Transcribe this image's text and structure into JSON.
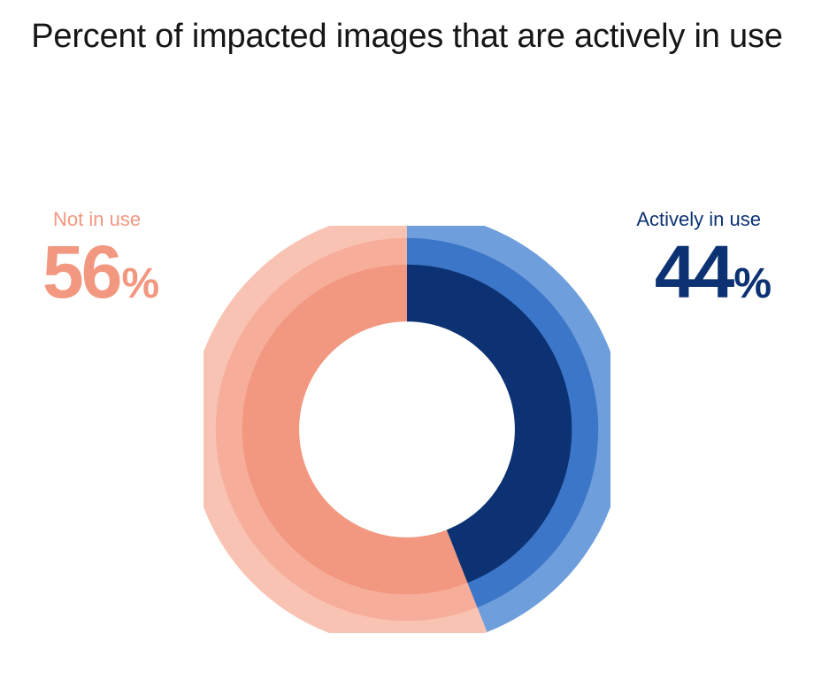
{
  "chart": {
    "type": "donut",
    "title": "Percent of impacted images that are actively in use",
    "title_fontsize": 38,
    "title_color": "#161616",
    "background_color": "#ffffff",
    "left": {
      "label": "Not in use",
      "value": 56,
      "unit": "%",
      "label_color": "#f29880"
    },
    "right": {
      "label": "Actively in use",
      "value": 44,
      "unit": "%",
      "label_color": "#0c3273"
    },
    "donut": {
      "outer_radius": 230,
      "inner_radius": 130,
      "rings": [
        {
          "radius_pct": 0.93,
          "stroke_pct": 0.14,
          "left_color": "#f9c3b4",
          "right_color": "#6e9edb"
        },
        {
          "radius_pct": 0.8,
          "stroke_pct": 0.14,
          "left_color": "#f6ae9b",
          "right_color": "#3c76c8"
        },
        {
          "radius_pct": 0.67,
          "stroke_pct": 0.14,
          "left_color": "#f29880",
          "right_color": "#0c3273"
        }
      ]
    },
    "label_fontsize": 22,
    "value_fontsize": 84,
    "unit_fontsize": 48
  }
}
